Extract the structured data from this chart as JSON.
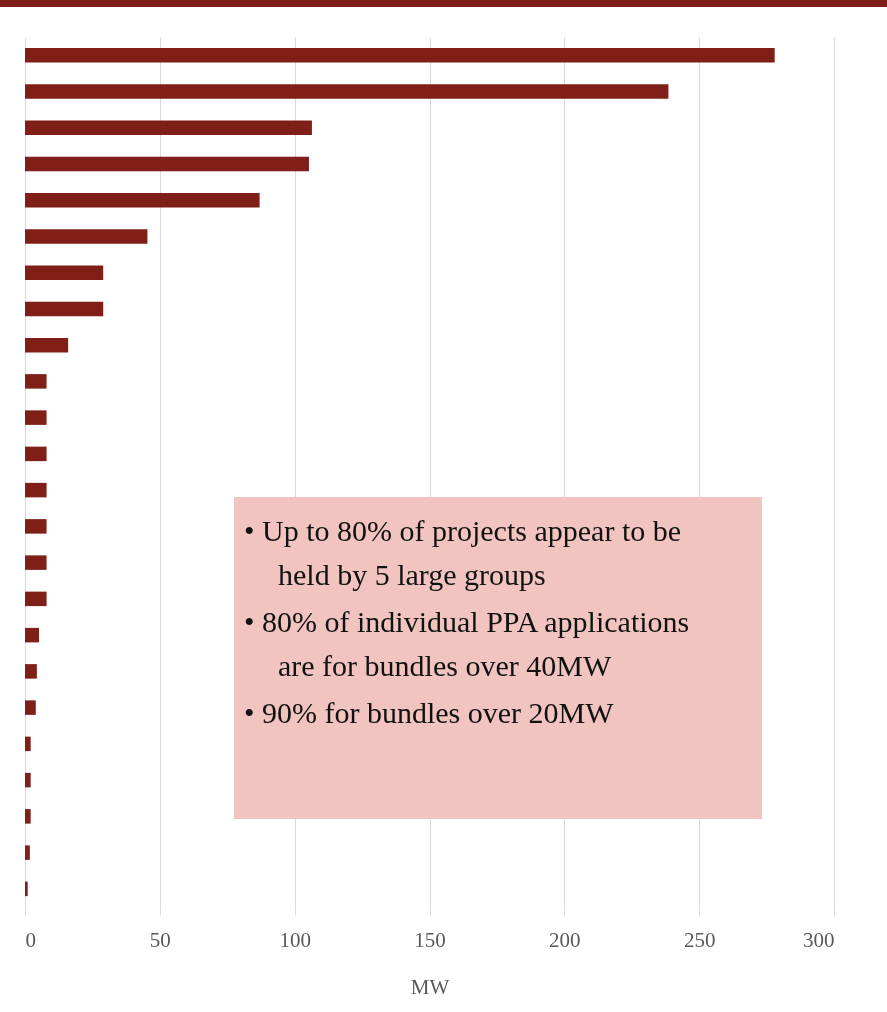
{
  "chart_data": {
    "type": "bar",
    "orientation": "horizontal",
    "xlabel": "MW",
    "categories": [
      null,
      null,
      null,
      null,
      null,
      null,
      null,
      null,
      null,
      null,
      null,
      null,
      null,
      null,
      null,
      null,
      null,
      null,
      null,
      null,
      null,
      null,
      null,
      null
    ],
    "values": [
      278,
      238.6,
      106.4,
      105.3,
      87,
      45.4,
      29,
      29,
      16,
      8,
      8,
      8,
      8,
      8,
      8,
      8,
      5.2,
      4.4,
      4,
      2.1,
      2.1,
      2.1,
      1.8,
      1
    ],
    "color": "#7f1f18",
    "xlim": [
      0,
      300
    ],
    "xticks": [
      0,
      50,
      100,
      150,
      200,
      250,
      300
    ],
    "grid": "x",
    "tick_labels": "x",
    "annotations": [
      "• Up to 80% of projects appear to be held by 5 large groups",
      "• 80% of individual PPA applications are for bundles over 40MW",
      "• 90% for bundles over 20MW"
    ]
  }
}
